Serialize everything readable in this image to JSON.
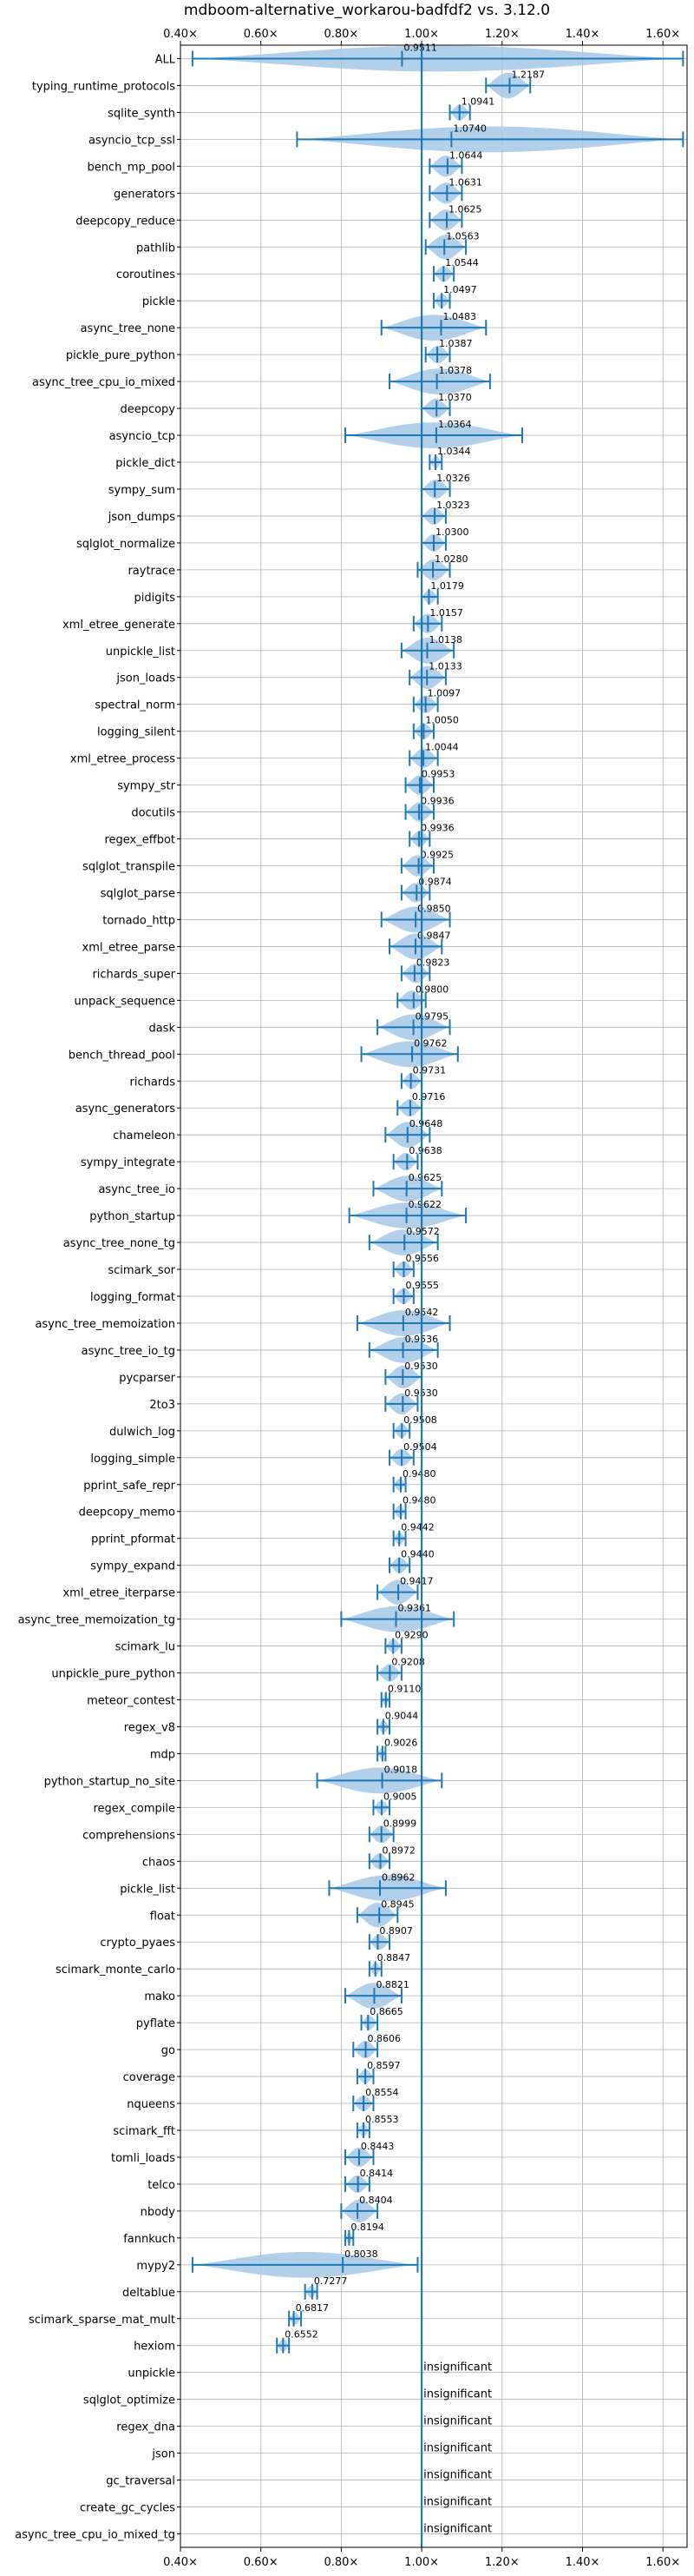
{
  "chart_data": {
    "type": "violin",
    "title": "mdboom-alternative_workarou-badfdf2 vs. 3.12.0",
    "xlabel": "",
    "ylabel": "",
    "xlim": [
      0.4,
      1.66
    ],
    "x_ticks": [
      0.4,
      0.6,
      0.8,
      1.0,
      1.2,
      1.4,
      1.6
    ],
    "x_tick_labels": [
      "0.40×",
      "0.60×",
      "0.80×",
      "1.00×",
      "1.20×",
      "1.40×",
      "1.60×"
    ],
    "reference_line": 1.0,
    "grid": true,
    "colors": {
      "violin": "#a6c8e6",
      "line": "#1f77b4",
      "text": "#000000"
    },
    "insignificant_label": "insignificant",
    "benchmarks": [
      {
        "name": "ALL",
        "mean": 0.9511,
        "label": "0.9511",
        "min": 0.43,
        "max": 1.65
      },
      {
        "name": "typing_runtime_protocols",
        "mean": 1.2187,
        "label": "1.2187",
        "min": 1.16,
        "max": 1.27
      },
      {
        "name": "sqlite_synth",
        "mean": 1.0941,
        "label": "1.0941",
        "min": 1.07,
        "max": 1.12
      },
      {
        "name": "asyncio_tcp_ssl",
        "mean": 1.074,
        "label": "1.0740",
        "min": 0.69,
        "max": 1.65
      },
      {
        "name": "bench_mp_pool",
        "mean": 1.0644,
        "label": "1.0644",
        "min": 1.02,
        "max": 1.1
      },
      {
        "name": "generators",
        "mean": 1.0631,
        "label": "1.0631",
        "min": 1.02,
        "max": 1.1
      },
      {
        "name": "deepcopy_reduce",
        "mean": 1.0625,
        "label": "1.0625",
        "min": 1.02,
        "max": 1.1
      },
      {
        "name": "pathlib",
        "mean": 1.0563,
        "label": "1.0563",
        "min": 1.01,
        "max": 1.11
      },
      {
        "name": "coroutines",
        "mean": 1.0544,
        "label": "1.0544",
        "min": 1.03,
        "max": 1.08
      },
      {
        "name": "pickle",
        "mean": 1.0497,
        "label": "1.0497",
        "min": 1.03,
        "max": 1.07
      },
      {
        "name": "async_tree_none",
        "mean": 1.0483,
        "label": "1.0483",
        "min": 0.9,
        "max": 1.16
      },
      {
        "name": "pickle_pure_python",
        "mean": 1.0387,
        "label": "1.0387",
        "min": 1.01,
        "max": 1.07
      },
      {
        "name": "async_tree_cpu_io_mixed",
        "mean": 1.0378,
        "label": "1.0378",
        "min": 0.92,
        "max": 1.17
      },
      {
        "name": "deepcopy",
        "mean": 1.037,
        "label": "1.0370",
        "min": 1.0,
        "max": 1.07
      },
      {
        "name": "asyncio_tcp",
        "mean": 1.0364,
        "label": "1.0364",
        "min": 0.81,
        "max": 1.25
      },
      {
        "name": "pickle_dict",
        "mean": 1.0344,
        "label": "1.0344",
        "min": 1.02,
        "max": 1.05
      },
      {
        "name": "sympy_sum",
        "mean": 1.0326,
        "label": "1.0326",
        "min": 1.0,
        "max": 1.07
      },
      {
        "name": "json_dumps",
        "mean": 1.0323,
        "label": "1.0323",
        "min": 1.0,
        "max": 1.06
      },
      {
        "name": "sqlglot_normalize",
        "mean": 1.03,
        "label": "1.0300",
        "min": 1.0,
        "max": 1.06
      },
      {
        "name": "raytrace",
        "mean": 1.028,
        "label": "1.0280",
        "min": 0.99,
        "max": 1.07
      },
      {
        "name": "pidigits",
        "mean": 1.0179,
        "label": "1.0179",
        "min": 1.0,
        "max": 1.04
      },
      {
        "name": "xml_etree_generate",
        "mean": 1.0157,
        "label": "1.0157",
        "min": 0.98,
        "max": 1.05
      },
      {
        "name": "unpickle_list",
        "mean": 1.0138,
        "label": "1.0138",
        "min": 0.95,
        "max": 1.08
      },
      {
        "name": "json_loads",
        "mean": 1.0133,
        "label": "1.0133",
        "min": 0.97,
        "max": 1.06
      },
      {
        "name": "spectral_norm",
        "mean": 1.0097,
        "label": "1.0097",
        "min": 0.98,
        "max": 1.04
      },
      {
        "name": "logging_silent",
        "mean": 1.005,
        "label": "1.0050",
        "min": 0.98,
        "max": 1.03
      },
      {
        "name": "xml_etree_process",
        "mean": 1.0044,
        "label": "1.0044",
        "min": 0.97,
        "max": 1.04
      },
      {
        "name": "sympy_str",
        "mean": 0.9953,
        "label": "0.9953",
        "min": 0.96,
        "max": 1.03
      },
      {
        "name": "docutils",
        "mean": 0.9936,
        "label": "0.9936",
        "min": 0.96,
        "max": 1.03
      },
      {
        "name": "regex_effbot",
        "mean": 0.9936,
        "label": "0.9936",
        "min": 0.97,
        "max": 1.02
      },
      {
        "name": "sqlglot_transpile",
        "mean": 0.9925,
        "label": "0.9925",
        "min": 0.95,
        "max": 1.03
      },
      {
        "name": "sqlglot_parse",
        "mean": 0.9874,
        "label": "0.9874",
        "min": 0.95,
        "max": 1.02
      },
      {
        "name": "tornado_http",
        "mean": 0.985,
        "label": "0.9850",
        "min": 0.9,
        "max": 1.07
      },
      {
        "name": "xml_etree_parse",
        "mean": 0.9847,
        "label": "0.9847",
        "min": 0.92,
        "max": 1.05
      },
      {
        "name": "richards_super",
        "mean": 0.9823,
        "label": "0.9823",
        "min": 0.95,
        "max": 1.02
      },
      {
        "name": "unpack_sequence",
        "mean": 0.98,
        "label": "0.9800",
        "min": 0.94,
        "max": 1.01
      },
      {
        "name": "dask",
        "mean": 0.9795,
        "label": "0.9795",
        "min": 0.89,
        "max": 1.07
      },
      {
        "name": "bench_thread_pool",
        "mean": 0.9762,
        "label": "0.9762",
        "min": 0.85,
        "max": 1.09
      },
      {
        "name": "richards",
        "mean": 0.9731,
        "label": "0.9731",
        "min": 0.95,
        "max": 1.0
      },
      {
        "name": "async_generators",
        "mean": 0.9716,
        "label": "0.9716",
        "min": 0.94,
        "max": 1.0
      },
      {
        "name": "chameleon",
        "mean": 0.9648,
        "label": "0.9648",
        "min": 0.91,
        "max": 1.02
      },
      {
        "name": "sympy_integrate",
        "mean": 0.9638,
        "label": "0.9638",
        "min": 0.93,
        "max": 0.99
      },
      {
        "name": "async_tree_io",
        "mean": 0.9625,
        "label": "0.9625",
        "min": 0.88,
        "max": 1.05
      },
      {
        "name": "python_startup",
        "mean": 0.9622,
        "label": "0.9622",
        "min": 0.82,
        "max": 1.11
      },
      {
        "name": "async_tree_none_tg",
        "mean": 0.9572,
        "label": "0.9572",
        "min": 0.87,
        "max": 1.04
      },
      {
        "name": "scimark_sor",
        "mean": 0.9556,
        "label": "0.9556",
        "min": 0.93,
        "max": 0.98
      },
      {
        "name": "logging_format",
        "mean": 0.9555,
        "label": "0.9555",
        "min": 0.93,
        "max": 0.98
      },
      {
        "name": "async_tree_memoization",
        "mean": 0.9542,
        "label": "0.9542",
        "min": 0.84,
        "max": 1.07
      },
      {
        "name": "async_tree_io_tg",
        "mean": 0.9536,
        "label": "0.9536",
        "min": 0.87,
        "max": 1.04
      },
      {
        "name": "pycparser",
        "mean": 0.953,
        "label": "0.9530",
        "min": 0.91,
        "max": 1.0
      },
      {
        "name": "2to3",
        "mean": 0.953,
        "label": "0.9530",
        "min": 0.91,
        "max": 0.99
      },
      {
        "name": "dulwich_log",
        "mean": 0.9508,
        "label": "0.9508",
        "min": 0.93,
        "max": 0.97
      },
      {
        "name": "logging_simple",
        "mean": 0.9504,
        "label": "0.9504",
        "min": 0.92,
        "max": 0.98
      },
      {
        "name": "pprint_safe_repr",
        "mean": 0.948,
        "label": "0.9480",
        "min": 0.93,
        "max": 0.96
      },
      {
        "name": "deepcopy_memo",
        "mean": 0.948,
        "label": "0.9480",
        "min": 0.93,
        "max": 0.96
      },
      {
        "name": "pprint_pformat",
        "mean": 0.9442,
        "label": "0.9442",
        "min": 0.93,
        "max": 0.96
      },
      {
        "name": "sympy_expand",
        "mean": 0.944,
        "label": "0.9440",
        "min": 0.92,
        "max": 0.97
      },
      {
        "name": "xml_etree_iterparse",
        "mean": 0.9417,
        "label": "0.9417",
        "min": 0.89,
        "max": 0.99
      },
      {
        "name": "async_tree_memoization_tg",
        "mean": 0.9361,
        "label": "0.9361",
        "min": 0.8,
        "max": 1.08
      },
      {
        "name": "scimark_lu",
        "mean": 0.929,
        "label": "0.9290",
        "min": 0.91,
        "max": 0.95
      },
      {
        "name": "unpickle_pure_python",
        "mean": 0.9208,
        "label": "0.9208",
        "min": 0.89,
        "max": 0.95
      },
      {
        "name": "meteor_contest",
        "mean": 0.911,
        "label": "0.9110",
        "min": 0.9,
        "max": 0.92
      },
      {
        "name": "regex_v8",
        "mean": 0.9044,
        "label": "0.9044",
        "min": 0.89,
        "max": 0.92
      },
      {
        "name": "mdp",
        "mean": 0.9026,
        "label": "0.9026",
        "min": 0.89,
        "max": 0.91
      },
      {
        "name": "python_startup_no_site",
        "mean": 0.9018,
        "label": "0.9018",
        "min": 0.74,
        "max": 1.05
      },
      {
        "name": "regex_compile",
        "mean": 0.9005,
        "label": "0.9005",
        "min": 0.88,
        "max": 0.92
      },
      {
        "name": "comprehensions",
        "mean": 0.8999,
        "label": "0.8999",
        "min": 0.87,
        "max": 0.93
      },
      {
        "name": "chaos",
        "mean": 0.8972,
        "label": "0.8972",
        "min": 0.87,
        "max": 0.92
      },
      {
        "name": "pickle_list",
        "mean": 0.8962,
        "label": "0.8962",
        "min": 0.77,
        "max": 1.06
      },
      {
        "name": "float",
        "mean": 0.8945,
        "label": "0.8945",
        "min": 0.84,
        "max": 0.94
      },
      {
        "name": "crypto_pyaes",
        "mean": 0.8907,
        "label": "0.8907",
        "min": 0.87,
        "max": 0.92
      },
      {
        "name": "scimark_monte_carlo",
        "mean": 0.8847,
        "label": "0.8847",
        "min": 0.87,
        "max": 0.9
      },
      {
        "name": "mako",
        "mean": 0.8821,
        "label": "0.8821",
        "min": 0.81,
        "max": 0.95
      },
      {
        "name": "pyflate",
        "mean": 0.8665,
        "label": "0.8665",
        "min": 0.85,
        "max": 0.89
      },
      {
        "name": "go",
        "mean": 0.8606,
        "label": "0.8606",
        "min": 0.83,
        "max": 0.89
      },
      {
        "name": "coverage",
        "mean": 0.8597,
        "label": "0.8597",
        "min": 0.84,
        "max": 0.88
      },
      {
        "name": "nqueens",
        "mean": 0.8554,
        "label": "0.8554",
        "min": 0.83,
        "max": 0.88
      },
      {
        "name": "scimark_fft",
        "mean": 0.8553,
        "label": "0.8553",
        "min": 0.84,
        "max": 0.87
      },
      {
        "name": "tomli_loads",
        "mean": 0.8443,
        "label": "0.8443",
        "min": 0.81,
        "max": 0.88
      },
      {
        "name": "telco",
        "mean": 0.8414,
        "label": "0.8414",
        "min": 0.81,
        "max": 0.87
      },
      {
        "name": "nbody",
        "mean": 0.8404,
        "label": "0.8404",
        "min": 0.8,
        "max": 0.89
      },
      {
        "name": "fannkuch",
        "mean": 0.8194,
        "label": "0.8194",
        "min": 0.81,
        "max": 0.83
      },
      {
        "name": "mypy2",
        "mean": 0.8038,
        "label": "0.8038",
        "min": 0.43,
        "max": 0.99
      },
      {
        "name": "deltablue",
        "mean": 0.7277,
        "label": "0.7277",
        "min": 0.71,
        "max": 0.74
      },
      {
        "name": "scimark_sparse_mat_mult",
        "mean": 0.6817,
        "label": "0.6817",
        "min": 0.67,
        "max": 0.7
      },
      {
        "name": "hexiom",
        "mean": 0.6552,
        "label": "0.6552",
        "min": 0.64,
        "max": 0.67
      },
      {
        "name": "unpickle",
        "insignificant": true
      },
      {
        "name": "sqlglot_optimize",
        "insignificant": true
      },
      {
        "name": "regex_dna",
        "insignificant": true
      },
      {
        "name": "json",
        "insignificant": true
      },
      {
        "name": "gc_traversal",
        "insignificant": true
      },
      {
        "name": "create_gc_cycles",
        "insignificant": true
      },
      {
        "name": "async_tree_cpu_io_mixed_tg",
        "insignificant": true
      }
    ]
  }
}
